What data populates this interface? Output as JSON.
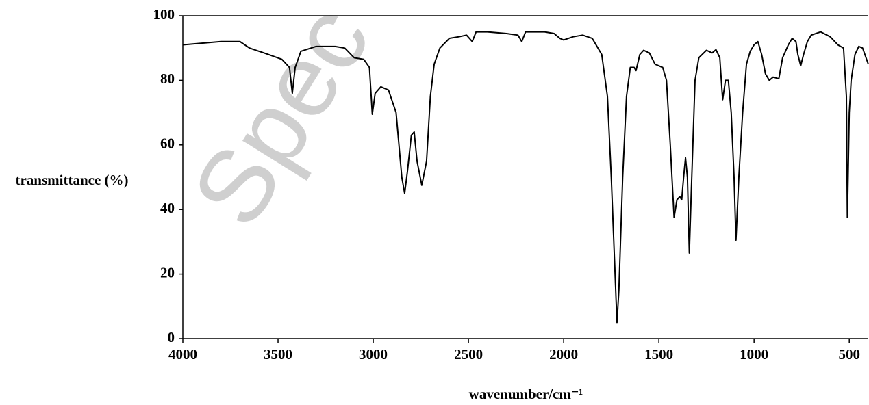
{
  "chart_data": {
    "type": "line",
    "watermark": "Spec",
    "xlabel": "wavenumber/cm⁻¹",
    "ylabel": "transmittance (%)",
    "xlim": [
      4000,
      400
    ],
    "ylim": [
      0,
      100
    ],
    "xticks": [
      4000,
      3500,
      3000,
      2500,
      2000,
      1500,
      1000,
      500
    ],
    "yticks": [
      0,
      20,
      40,
      60,
      80,
      100
    ],
    "color": "#000000",
    "x": [
      4000,
      3900,
      3800,
      3700,
      3650,
      3600,
      3550,
      3480,
      3440,
      3425,
      3410,
      3380,
      3300,
      3200,
      3150,
      3100,
      3050,
      3020,
      3005,
      2990,
      2960,
      2920,
      2880,
      2850,
      2835,
      2820,
      2800,
      2785,
      2770,
      2745,
      2720,
      2700,
      2680,
      2650,
      2600,
      2550,
      2510,
      2480,
      2460,
      2400,
      2300,
      2240,
      2220,
      2200,
      2100,
      2050,
      2020,
      2000,
      1950,
      1900,
      1850,
      1800,
      1770,
      1750,
      1730,
      1720,
      1710,
      1690,
      1670,
      1650,
      1630,
      1620,
      1600,
      1580,
      1550,
      1520,
      1480,
      1460,
      1440,
      1420,
      1405,
      1390,
      1380,
      1370,
      1360,
      1350,
      1340,
      1330,
      1310,
      1290,
      1250,
      1220,
      1200,
      1180,
      1165,
      1150,
      1135,
      1120,
      1105,
      1095,
      1080,
      1060,
      1040,
      1020,
      1000,
      980,
      960,
      940,
      920,
      900,
      870,
      850,
      820,
      800,
      780,
      770,
      755,
      740,
      720,
      700,
      650,
      600,
      560,
      530,
      515,
      510,
      500,
      490,
      470,
      450,
      430,
      400
    ],
    "values": [
      91,
      91.5,
      92,
      92,
      90,
      89,
      88,
      86.5,
      84,
      76,
      84,
      89,
      90.5,
      90.5,
      90,
      87,
      86.5,
      84,
      69.5,
      76,
      78,
      77,
      70,
      50,
      45,
      52,
      63,
      64,
      55,
      47.5,
      55,
      75,
      85,
      90,
      93,
      93.5,
      94,
      92,
      95,
      95,
      94.5,
      94,
      92,
      95,
      95,
      94.5,
      93,
      92.5,
      93.5,
      94,
      93,
      88,
      75,
      50,
      20,
      5,
      15,
      50,
      75,
      84,
      84,
      83,
      88,
      89.3,
      88.5,
      85,
      84,
      80,
      60,
      37.5,
      43,
      44,
      43,
      50,
      56,
      50,
      26.5,
      45,
      80,
      87,
      89.3,
      88.5,
      89.5,
      87,
      74,
      80,
      80,
      70,
      50,
      30.5,
      50,
      70,
      85,
      89,
      91,
      92,
      88,
      82,
      80,
      81,
      80.5,
      87,
      91,
      93,
      92,
      88,
      84.5,
      88,
      92,
      94,
      95,
      93.5,
      91,
      90,
      75,
      37.5,
      70,
      80,
      88,
      90.5,
      90,
      85
    ]
  }
}
